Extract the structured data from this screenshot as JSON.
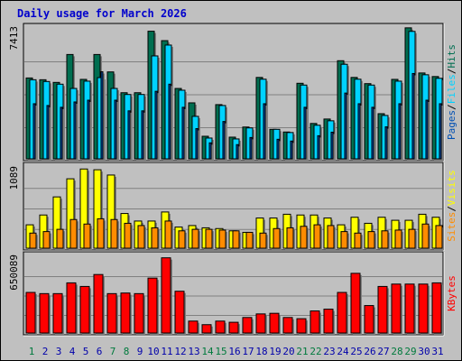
{
  "title": "Daily usage for March 2026",
  "colors": {
    "background": "#c0c0c0",
    "title": "#0000cc",
    "hits": "#006e50",
    "files": "#00d2ff",
    "pages": "#0050b4",
    "visits": "#ffff00",
    "sites": "#ff8c00",
    "kbytes": "#ff0000",
    "weekend_day_label": "#007a3d",
    "weekday_label": "#0000aa"
  },
  "chart_data": [
    {
      "type": "bar",
      "panel": "hits-files-pages",
      "legend": [
        "Pages",
        "/",
        "Files",
        "/",
        "Hits"
      ],
      "ymax_label": "7413",
      "ylim": [
        0,
        7413
      ],
      "series": [
        {
          "name": "Hits",
          "values": [
            4550,
            4450,
            4300,
            5870,
            4470,
            5870,
            4890,
            3720,
            3720,
            7180,
            6650,
            3960,
            3150,
            1270,
            3050,
            1220,
            1790,
            4580,
            1660,
            1510,
            4250,
            1990,
            2240,
            5520,
            4580,
            4230,
            2540,
            4470,
            7370,
            4830,
            4630
          ]
        },
        {
          "name": "Files",
          "values": [
            4450,
            4350,
            4200,
            3960,
            4370,
            4570,
            3960,
            3620,
            3620,
            5790,
            6400,
            3860,
            2390,
            1170,
            3000,
            1120,
            1740,
            4480,
            1660,
            1480,
            4150,
            1890,
            2140,
            5320,
            4480,
            4150,
            2440,
            4370,
            7170,
            4730,
            4530
          ]
        },
        {
          "name": "Pages",
          "values": [
            3100,
            3000,
            2900,
            3200,
            3300,
            4900,
            3300,
            2700,
            2700,
            3800,
            4200,
            2900,
            1700,
            900,
            2100,
            800,
            1200,
            3100,
            1100,
            1000,
            2900,
            1300,
            1500,
            3700,
            3100,
            2900,
            1800,
            3100,
            4800,
            3300,
            3100
          ]
        }
      ]
    },
    {
      "type": "bar",
      "panel": "visits-sites",
      "legend": [
        "Sites",
        "/",
        "Visits"
      ],
      "ymax_label": "1089",
      "ylim": [
        0,
        1089
      ],
      "series": [
        {
          "name": "Visits",
          "values": [
            310,
            440,
            680,
            920,
            1050,
            1040,
            970,
            460,
            360,
            360,
            480,
            280,
            300,
            270,
            260,
            230,
            210,
            400,
            400,
            450,
            440,
            440,
            400,
            310,
            410,
            330,
            410,
            370,
            370,
            450,
            410
          ]
        },
        {
          "name": "Sites",
          "values": [
            200,
            220,
            250,
            380,
            320,
            390,
            380,
            330,
            300,
            270,
            360,
            230,
            250,
            250,
            240,
            230,
            210,
            200,
            260,
            270,
            290,
            310,
            300,
            220,
            200,
            220,
            230,
            240,
            250,
            320,
            300
          ]
        }
      ]
    },
    {
      "type": "bar",
      "panel": "kbytes",
      "legend": [
        "KBytes"
      ],
      "ymax_label": "650089",
      "ylim": [
        0,
        650089
      ],
      "series": [
        {
          "name": "KBytes",
          "values": [
            340000,
            330000,
            330000,
            420000,
            390000,
            490000,
            330000,
            335000,
            330000,
            460000,
            630000,
            350000,
            100000,
            70000,
            100000,
            90000,
            130000,
            160000,
            165000,
            130000,
            120000,
            185000,
            200000,
            340000,
            500000,
            230000,
            390000,
            410000,
            410000,
            410000,
            420000
          ]
        }
      ]
    }
  ],
  "days": [
    "1",
    "2",
    "3",
    "4",
    "5",
    "6",
    "7",
    "8",
    "9",
    "10",
    "11",
    "12",
    "13",
    "14",
    "15",
    "16",
    "17",
    "18",
    "19",
    "20",
    "21",
    "22",
    "23",
    "24",
    "25",
    "26",
    "27",
    "28",
    "29",
    "30",
    "31"
  ],
  "weekend_days": [
    "1",
    "7",
    "8",
    "14",
    "15",
    "21",
    "22",
    "28",
    "29"
  ]
}
